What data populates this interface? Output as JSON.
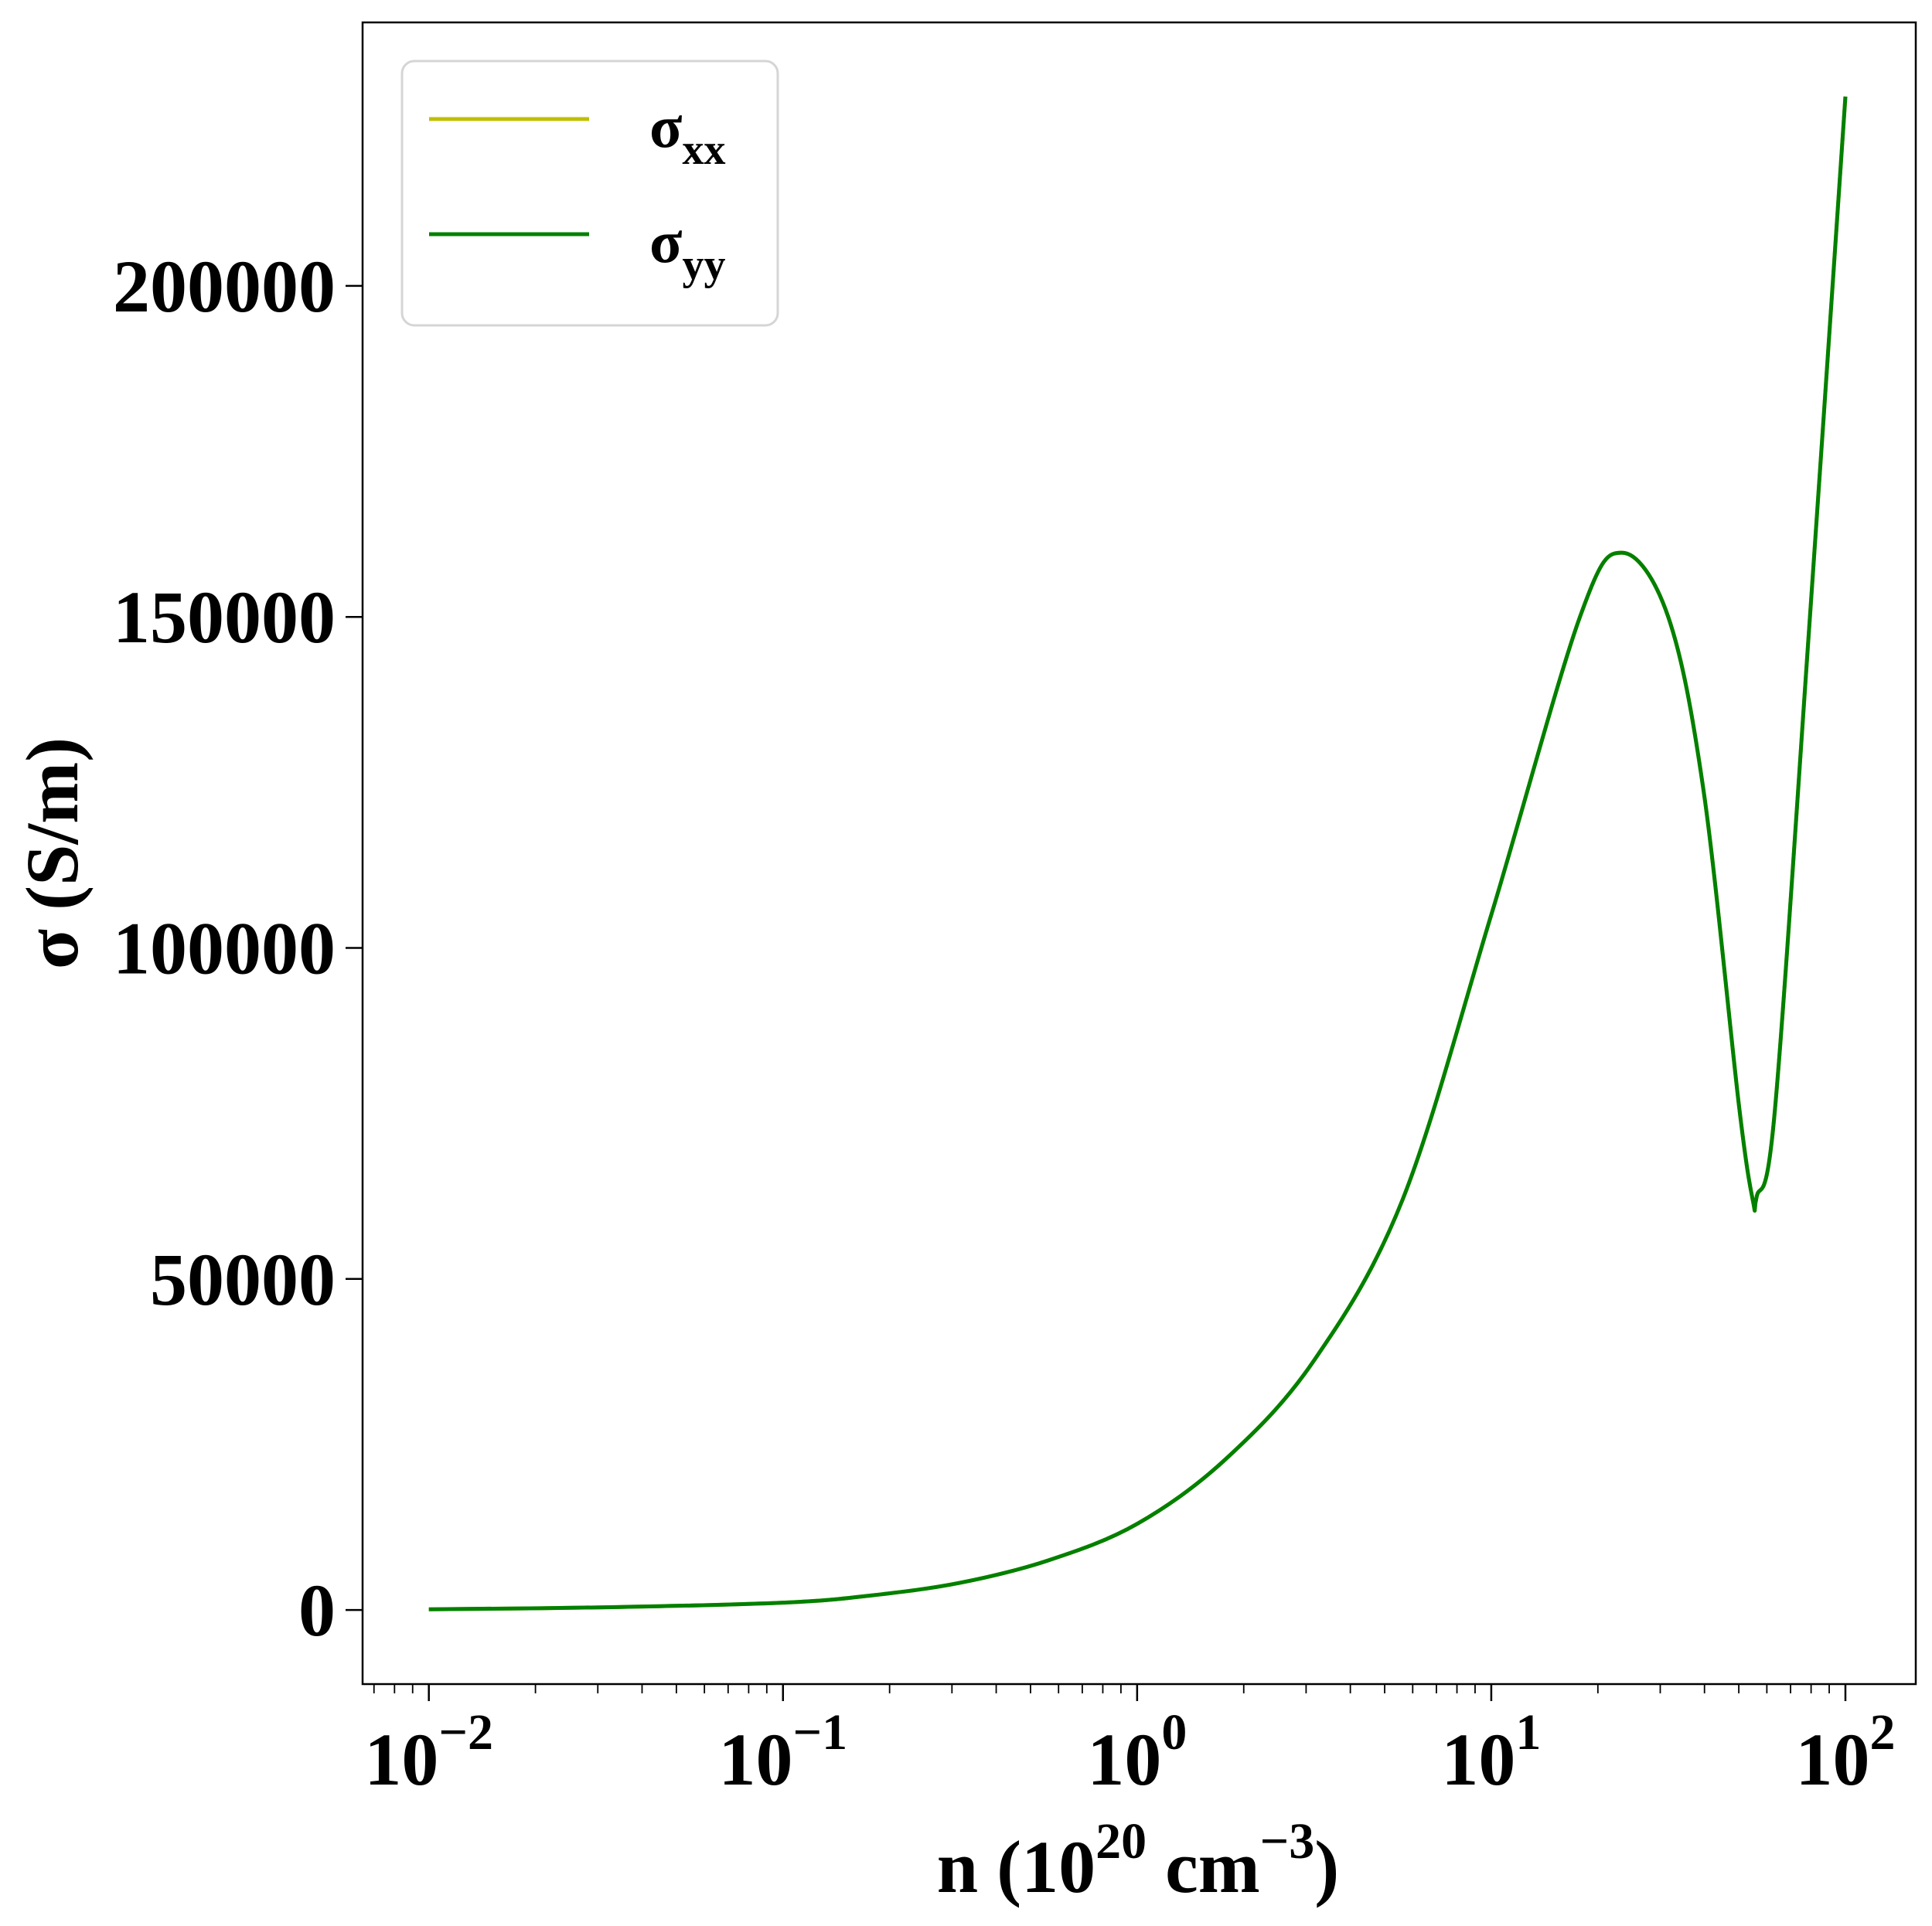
{
  "chart_data": {
    "type": "line",
    "title": "",
    "xlabel": {
      "base": "n (10",
      "sup1": "20",
      "mid": " cm",
      "sup2": "−3",
      "end": ")"
    },
    "ylabel": "σ (S/m)",
    "xscale": "log",
    "xlim": [
      0.0065,
      158
    ],
    "ylim": [
      -11200,
      239800
    ],
    "grid": false,
    "legend_placement": "top-left",
    "x_ticks": [
      {
        "base": "10",
        "exp": "−2",
        "value": 0.01
      },
      {
        "base": "10",
        "exp": "−1",
        "value": 0.1
      },
      {
        "base": "10",
        "exp": "0",
        "value": 1
      },
      {
        "base": "10",
        "exp": "1",
        "value": 10
      },
      {
        "base": "10",
        "exp": "2",
        "value": 100
      }
    ],
    "y_ticks": [
      {
        "label": "0",
        "value": 0
      },
      {
        "label": "50000",
        "value": 50000
      },
      {
        "label": "100000",
        "value": 100000
      },
      {
        "label": "150000",
        "value": 150000
      },
      {
        "label": "200000",
        "value": 200000
      }
    ],
    "x": [
      0.01,
      0.0316,
      0.1,
      0.178,
      0.316,
      0.562,
      1.0,
      1.78,
      3.16,
      5.62,
      10.0,
      17.8,
      23.4,
      31.6,
      39.8,
      50.1,
      54.9,
      56.2,
      63.1,
      79.4,
      100
    ],
    "series": [
      {
        "name": "σxx",
        "sub": "xx",
        "color": "#bfbf00",
        "values": [
          100,
          400,
          1100,
          2200,
          4100,
          7500,
          13000,
          22800,
          37700,
          62000,
          105000,
          150000,
          159700,
          150000,
          123600,
          76000,
          61600,
          62500,
          75000,
          150000,
          228600
        ]
      },
      {
        "name": "σyy",
        "sub": "yy",
        "color": "#008000",
        "values": [
          100,
          400,
          1100,
          2200,
          4100,
          7500,
          13000,
          22800,
          37700,
          62000,
          105000,
          150000,
          159700,
          150000,
          123600,
          76000,
          61600,
          62500,
          75000,
          150000,
          228600
        ]
      }
    ]
  }
}
